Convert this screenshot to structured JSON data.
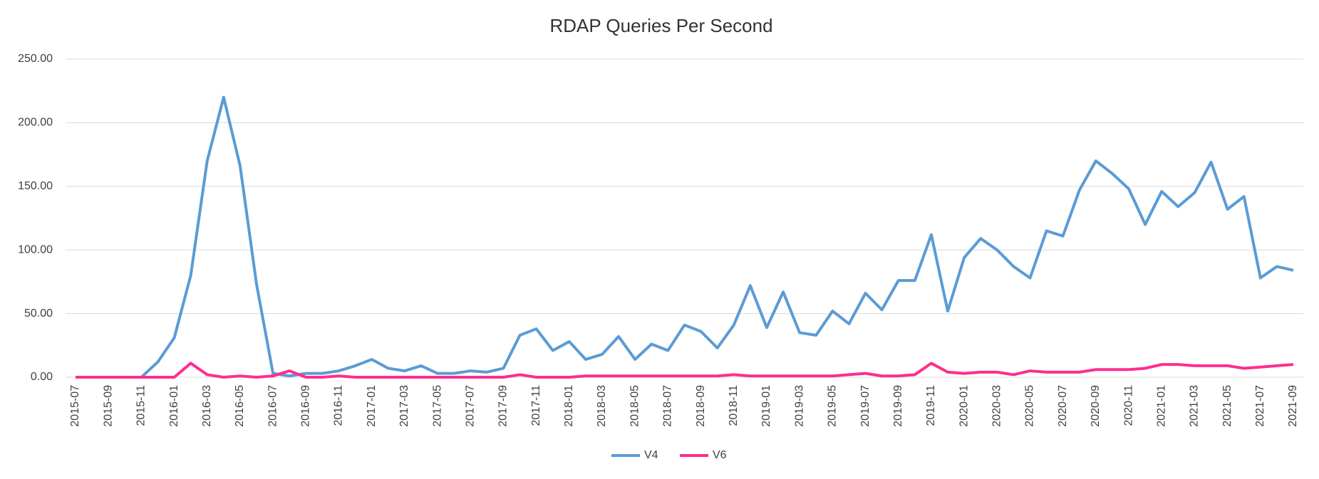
{
  "chart_data": {
    "type": "line",
    "title": "RDAP Queries Per Second",
    "categories": [
      "2015-07",
      null,
      "2015-09",
      null,
      "2015-11",
      null,
      "2016-01",
      null,
      "2016-03",
      null,
      "2016-05",
      null,
      "2016-07",
      null,
      "2016-09",
      null,
      "2016-11",
      null,
      "2017-01",
      null,
      "2017-03",
      null,
      "2017-05",
      null,
      "2017-07",
      null,
      "2017-09",
      null,
      "2017-11",
      null,
      "2018-01",
      null,
      "2018-03",
      null,
      "2018-05",
      null,
      "2018-07",
      null,
      "2018-09",
      null,
      "2018-11",
      null,
      "2019-01",
      null,
      "2019-03",
      null,
      "2019-05",
      null,
      "2019-07",
      null,
      "2019-09",
      null,
      "2019-11",
      null,
      "2020-01",
      null,
      "2020-03",
      null,
      "2020-05",
      null,
      "2020-07",
      null,
      "2020-09",
      null,
      "2020-11",
      null,
      "2021-01",
      null,
      "2021-03",
      null,
      "2021-05",
      null,
      "2021-07",
      null,
      "2021-09"
    ],
    "series": [
      {
        "name": "V4",
        "color": "#5b9bd5",
        "values": [
          0,
          0,
          0,
          0,
          0,
          12,
          31,
          80,
          170,
          220,
          166,
          73,
          3,
          1,
          3,
          3,
          5,
          9,
          14,
          7,
          5,
          9,
          3,
          3,
          5,
          4,
          7,
          33,
          38,
          21,
          28,
          14,
          18,
          32,
          14,
          26,
          21,
          41,
          36,
          23,
          41,
          72,
          39,
          67,
          35,
          33,
          52,
          42,
          66,
          53,
          76,
          76,
          112,
          52,
          94,
          109,
          100,
          87,
          78,
          115,
          111,
          147,
          170,
          160,
          148,
          120,
          146,
          134,
          145,
          169,
          132,
          142,
          78,
          87,
          84
        ]
      },
      {
        "name": "V6",
        "color": "#ff2d8f",
        "values": [
          0,
          0,
          0,
          0,
          0,
          0,
          0,
          11,
          2,
          0,
          1,
          0,
          1,
          5,
          0,
          0,
          1,
          0,
          0,
          0,
          0,
          0,
          0,
          0,
          0,
          0,
          0,
          2,
          0,
          0,
          0,
          1,
          1,
          1,
          1,
          1,
          1,
          1,
          1,
          1,
          2,
          1,
          1,
          1,
          1,
          1,
          1,
          2,
          3,
          1,
          1,
          2,
          11,
          4,
          3,
          4,
          4,
          2,
          5,
          4,
          4,
          4,
          6,
          6,
          6,
          7,
          10,
          10,
          9,
          9,
          9,
          7,
          8,
          9,
          10
        ]
      }
    ],
    "ylim": [
      0,
      250
    ],
    "yticks": [
      {
        "value": 0,
        "label": "0.00"
      },
      {
        "value": 50,
        "label": "50.00"
      },
      {
        "value": 100,
        "label": "100.00"
      },
      {
        "value": 150,
        "label": "150.00"
      },
      {
        "value": 200,
        "label": "200.00"
      },
      {
        "value": 250,
        "label": "250.00"
      }
    ],
    "grid": true,
    "legend": "bottom"
  }
}
